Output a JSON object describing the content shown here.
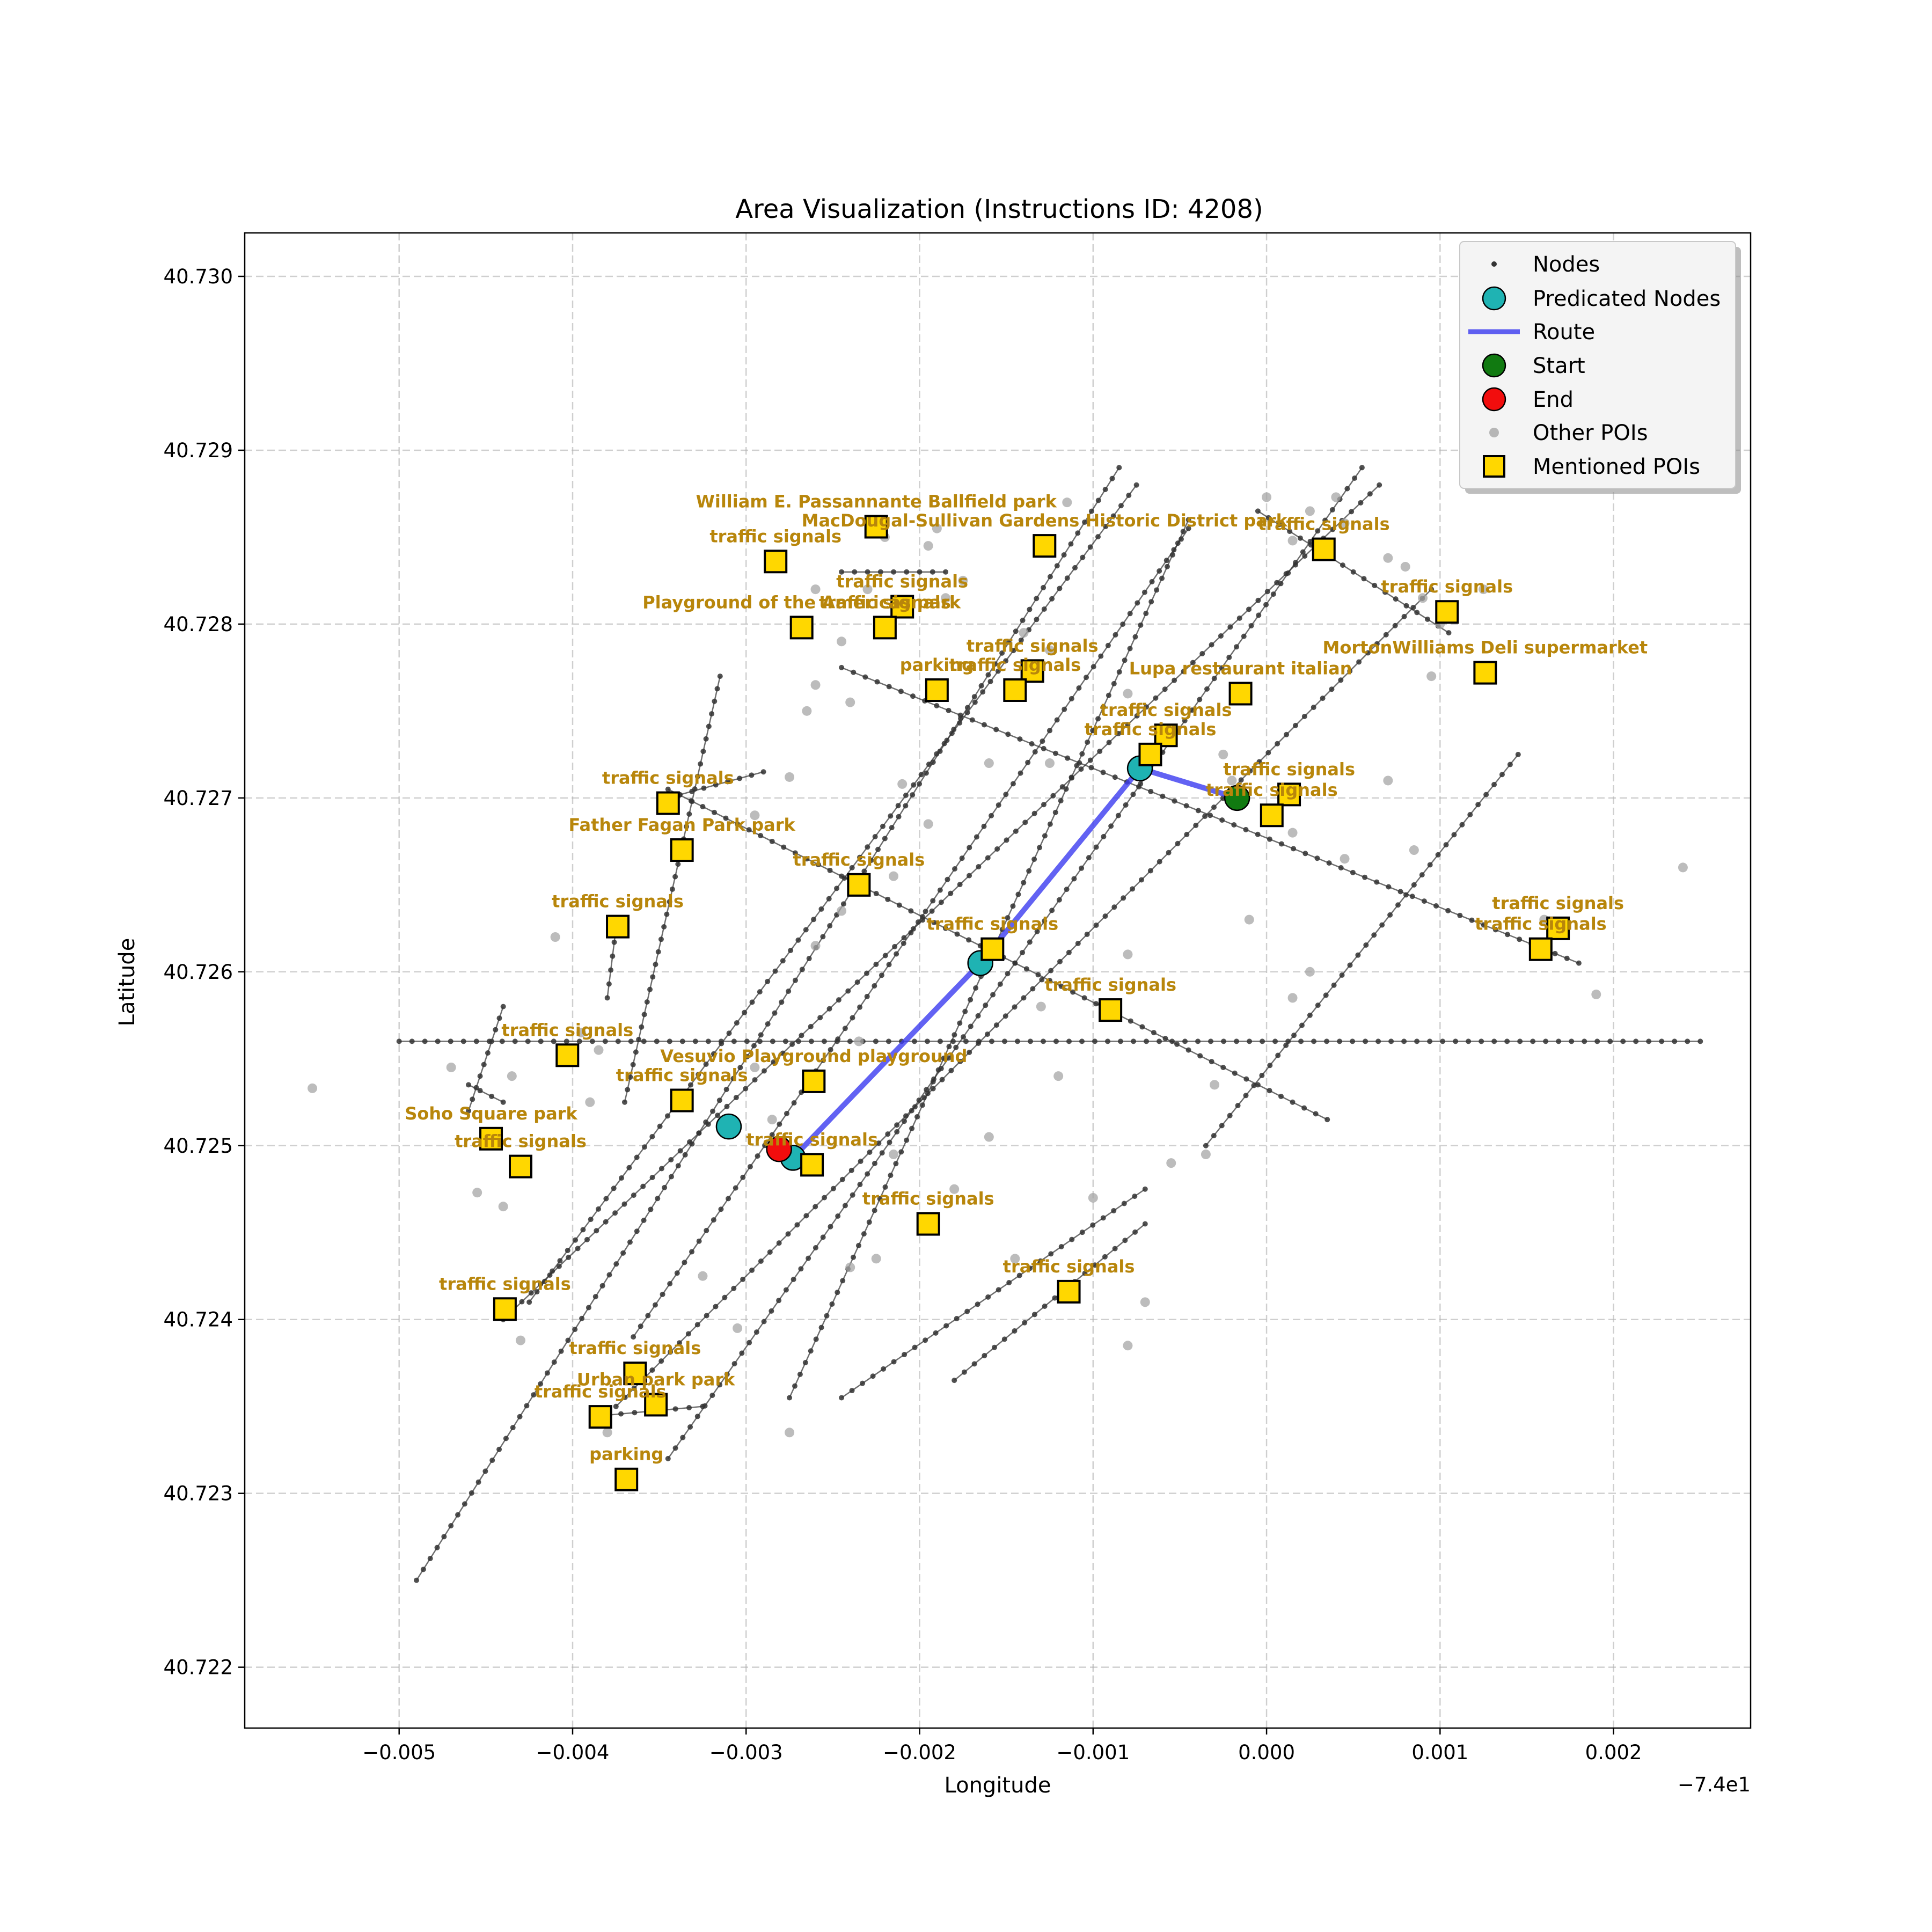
{
  "figure": {
    "title": "Area Visualization (Instructions ID: 4208)",
    "xlabel": "Longitude",
    "ylabel": "Latitude",
    "x_offset_text": "−7.4e1"
  },
  "chart_data": {
    "type": "scatter",
    "x_offset": -74,
    "xlim": [
      -0.00589,
      0.00279
    ],
    "ylim": [
      40.72165,
      40.73025
    ],
    "xticks": [
      -0.005,
      -0.004,
      -0.003,
      -0.002,
      -0.001,
      0.0,
      0.001,
      0.002
    ],
    "xtick_labels": [
      "−0.005",
      "−0.004",
      "−0.003",
      "−0.002",
      "−0.001",
      "0.000",
      "0.001",
      "0.002"
    ],
    "yticks": [
      40.722,
      40.723,
      40.724,
      40.725,
      40.726,
      40.727,
      40.728,
      40.729,
      40.73
    ],
    "ytick_labels": [
      "40.722",
      "40.723",
      "40.724",
      "40.725",
      "40.726",
      "40.727",
      "40.728",
      "40.729",
      "40.730"
    ],
    "grid": true,
    "legend": {
      "location": "top-right",
      "entries": [
        "Nodes",
        "Predicated Nodes",
        "Route",
        "Start",
        "End",
        "Other POIs",
        "Mentioned POIs"
      ]
    },
    "colors": {
      "nodes": "#333333",
      "predicted": "#1fb3b3",
      "route": "#3b3bf0",
      "start": "#117a11",
      "end": "#f20d0d",
      "other_poi": "#a6a6a6",
      "mentioned_poi": "#ffd700",
      "poi_label": "#b8860b"
    },
    "roads": [
      [
        [
          -0.00245,
          40.72355
        ],
        [
          -0.0007,
          40.72475
        ]
      ],
      [
        [
          -0.00275,
          40.72355
        ],
        [
          -0.00045,
          40.7286
        ]
      ],
      [
        [
          -0.00365,
          40.7239
        ],
        [
          -0.00045,
          40.72855
        ]
      ],
      [
        [
          -0.00425,
          40.7241
        ],
        [
          -0.00075,
          40.7288
        ]
      ],
      [
        [
          -0.0049,
          40.7225
        ],
        [
          -0.00085,
          40.7289
        ]
      ],
      [
        [
          -0.00345,
          40.7232
        ],
        [
          0.00055,
          40.7289
        ]
      ],
      [
        [
          -0.0044,
          40.724
        ],
        [
          0.00065,
          40.7288
        ]
      ],
      [
        [
          -0.00375,
          40.7235
        ],
        [
          0.00095,
          40.7282
        ]
      ],
      [
        [
          -0.00035,
          40.725
        ],
        [
          0.00145,
          40.72725
        ]
      ],
      [
        [
          -0.005,
          40.7256
        ],
        [
          0.0025,
          40.7256
        ]
      ],
      [
        [
          -0.00345,
          40.72705
        ],
        [
          0.00035,
          40.72515
        ]
      ],
      [
        [
          -0.00245,
          40.72775
        ],
        [
          0.0018,
          40.72605
        ]
      ],
      [
        [
          -5e-05,
          40.72865
        ],
        [
          0.00105,
          40.72795
        ]
      ],
      [
        [
          -0.0038,
          40.72345
        ],
        [
          -0.00325,
          40.7235
        ]
      ],
      [
        [
          -0.0037,
          40.72525
        ],
        [
          -0.00315,
          40.7277
        ]
      ],
      [
        [
          -0.00345,
          40.727
        ],
        [
          -0.0029,
          40.72715
        ]
      ],
      [
        [
          -0.0046,
          40.72535
        ],
        [
          -0.0044,
          40.72525
        ]
      ],
      [
        [
          -0.00375,
          40.72625
        ],
        [
          -0.0038,
          40.72585
        ]
      ],
      [
        [
          -0.0046,
          40.7252
        ],
        [
          -0.0044,
          40.7258
        ]
      ],
      [
        [
          -0.00245,
          40.7283
        ],
        [
          -0.00185,
          40.7283
        ]
      ],
      [
        [
          -0.0018,
          40.72365
        ],
        [
          -0.0007,
          40.72455
        ]
      ]
    ],
    "predicted_nodes": [
      {
        "lon": -0.0031,
        "lat": 40.72511
      },
      {
        "lon": -0.00273,
        "lat": 40.72493
      },
      {
        "lon": -0.00165,
        "lat": 40.72605
      },
      {
        "lon": -0.00073,
        "lat": 40.72717
      }
    ],
    "route": [
      {
        "lon": -0.00017,
        "lat": 40.727
      },
      {
        "lon": -0.00073,
        "lat": 40.72717
      },
      {
        "lon": -0.00165,
        "lat": 40.72605
      },
      {
        "lon": -0.00273,
        "lat": 40.72493
      }
    ],
    "start": {
      "lon": -0.00017,
      "lat": 40.727
    },
    "end": {
      "lon": -0.00281,
      "lat": 40.72498
    },
    "other_pois": [
      [
        -0.0055,
        40.72533
      ],
      [
        -0.0047,
        40.72545
      ],
      [
        -0.00435,
        40.7254
      ],
      [
        -0.0044,
        40.72465
      ],
      [
        -0.00455,
        40.72473
      ],
      [
        -0.0043,
        40.72388
      ],
      [
        -0.0038,
        40.72335
      ],
      [
        -0.00395,
        40.72565
      ],
      [
        -0.00385,
        40.72555
      ],
      [
        -0.0039,
        40.72525
      ],
      [
        -0.0041,
        40.7262
      ],
      [
        -0.00325,
        40.72425
      ],
      [
        -0.00305,
        40.72395
      ],
      [
        -0.00295,
        40.72545
      ],
      [
        -0.00285,
        40.72515
      ],
      [
        -0.00275,
        40.72335
      ],
      [
        -0.0026,
        40.72615
      ],
      [
        -0.00245,
        40.72635
      ],
      [
        -0.00235,
        40.7256
      ],
      [
        -0.00225,
        40.72435
      ],
      [
        -0.0024,
        40.7243
      ],
      [
        -0.00215,
        40.72495
      ],
      [
        -0.0018,
        40.72475
      ],
      [
        -0.0016,
        40.72505
      ],
      [
        -0.00145,
        40.72435
      ],
      [
        -0.0013,
        40.7258
      ],
      [
        -0.0012,
        40.7254
      ],
      [
        -0.001,
        40.7247
      ],
      [
        -0.0008,
        40.7261
      ],
      [
        -0.0008,
        40.72385
      ],
      [
        -0.0007,
        40.7241
      ],
      [
        -0.00055,
        40.7249
      ],
      [
        -0.0003,
        40.72535
      ],
      [
        -0.00035,
        40.72495
      ],
      [
        -0.0001,
        40.7263
      ],
      [
        0.00015,
        40.72585
      ],
      [
        0.00025,
        40.726
      ],
      [
        0.00085,
        40.7267
      ],
      [
        0.00095,
        40.7277
      ],
      [
        0.0016,
        40.7263
      ],
      [
        0.0019,
        40.72587
      ],
      [
        0.0024,
        40.7266
      ],
      [
        0.00015,
        40.7268
      ],
      [
        0.00045,
        40.72665
      ],
      [
        0.0007,
        40.7271
      ],
      [
        -0.0002,
        40.7271
      ],
      [
        -0.00025,
        40.72725
      ],
      [
        -0.0008,
        40.7276
      ],
      [
        -0.00125,
        40.7272
      ],
      [
        -0.0016,
        40.7272
      ],
      [
        -0.00195,
        40.72685
      ],
      [
        -0.00215,
        40.72655
      ],
      [
        -0.0021,
        40.72708
      ],
      [
        -0.00265,
        40.7275
      ],
      [
        -0.0026,
        40.72765
      ],
      [
        -0.0026,
        40.7282
      ],
      [
        -0.0023,
        40.7282
      ],
      [
        -0.00245,
        40.7279
      ],
      [
        -0.0024,
        40.72755
      ],
      [
        -0.0022,
        40.7285
      ],
      [
        -0.00195,
        40.72845
      ],
      [
        -0.00175,
        40.72825
      ],
      [
        -0.00185,
        40.72815
      ],
      [
        -0.0014,
        40.72795
      ],
      [
        -0.00125,
        40.72785
      ],
      [
        -0.00115,
        40.7287
      ],
      [
        -0.0019,
        40.72855
      ],
      [
        0.0,
        40.72873
      ],
      [
        0.00025,
        40.72865
      ],
      [
        0.0004,
        40.72873
      ],
      [
        0.00015,
        40.72848
      ],
      [
        0.00045,
        40.72858
      ],
      [
        0.0007,
        40.72838
      ],
      [
        0.0008,
        40.72833
      ],
      [
        0.0009,
        40.72815
      ],
      [
        0.001,
        40.728
      ],
      [
        0.00125,
        40.7282
      ],
      [
        -0.00295,
        40.7269
      ],
      [
        -0.00275,
        40.72712
      ]
    ],
    "mentioned_pois": [
      {
        "lon": -0.00283,
        "lat": 40.72836,
        "label": "traffic signals"
      },
      {
        "lon": -0.00225,
        "lat": 40.72856,
        "label": "William E. Passannante Ballfield   park"
      },
      {
        "lon": -0.00128,
        "lat": 40.72845,
        "label": "MacDougal-Sullivan Gardens Historic District   park"
      },
      {
        "lon": -0.0021,
        "lat": 40.7281,
        "label": "traffic signals"
      },
      {
        "lon": -0.00268,
        "lat": 40.72798,
        "label": "Playground of the Americas   park"
      },
      {
        "lon": -0.0022,
        "lat": 40.72798,
        "label": "traffic signals"
      },
      {
        "lon": -0.00135,
        "lat": 40.72773,
        "label": "traffic signals"
      },
      {
        "lon": -0.0019,
        "lat": 40.72762,
        "label": "parking"
      },
      {
        "lon": -0.00145,
        "lat": 40.72762,
        "label": "traffic signals"
      },
      {
        "lon": -0.00015,
        "lat": 40.7276,
        "label": "Lupa restaurant italian"
      },
      {
        "lon": 0.00033,
        "lat": 40.72843,
        "label": "traffic signals"
      },
      {
        "lon": 0.00104,
        "lat": 40.72807,
        "label": "traffic signals"
      },
      {
        "lon": 0.00126,
        "lat": 40.72772,
        "label": "MortonWilliams Deli     supermarket"
      },
      {
        "lon": -0.00058,
        "lat": 40.72736,
        "label": "traffic signals"
      },
      {
        "lon": -0.00067,
        "lat": 40.72725,
        "label": "traffic signals"
      },
      {
        "lon": 0.00013,
        "lat": 40.72702,
        "label": "traffic signals"
      },
      {
        "lon": 3e-05,
        "lat": 40.7269,
        "label": "traffic signals"
      },
      {
        "lon": -0.00345,
        "lat": 40.72697,
        "label": "traffic signals"
      },
      {
        "lon": -0.00337,
        "lat": 40.7267,
        "label": "Father Fagan Park   park"
      },
      {
        "lon": -0.00235,
        "lat": 40.7265,
        "label": "traffic signals"
      },
      {
        "lon": -0.00374,
        "lat": 40.72626,
        "label": "traffic signals"
      },
      {
        "lon": -0.00158,
        "lat": 40.72613,
        "label": "traffic signals"
      },
      {
        "lon": 0.00168,
        "lat": 40.72625,
        "label": "traffic signals"
      },
      {
        "lon": 0.00158,
        "lat": 40.72613,
        "label": "traffic signals"
      },
      {
        "lon": -0.0009,
        "lat": 40.72578,
        "label": "traffic signals"
      },
      {
        "lon": -0.00403,
        "lat": 40.72552,
        "label": "traffic signals"
      },
      {
        "lon": -0.00337,
        "lat": 40.72526,
        "label": "traffic signals"
      },
      {
        "lon": -0.00261,
        "lat": 40.72537,
        "label": "Vesuvio Playground    playground"
      },
      {
        "lon": -0.00447,
        "lat": 40.72504,
        "label": "Soho Square   park"
      },
      {
        "lon": -0.0043,
        "lat": 40.72488,
        "label": "traffic signals"
      },
      {
        "lon": -0.00262,
        "lat": 40.72489,
        "label": "traffic signals"
      },
      {
        "lon": -0.00195,
        "lat": 40.72455,
        "label": "traffic signals"
      },
      {
        "lon": -0.00114,
        "lat": 40.72416,
        "label": "traffic signals"
      },
      {
        "lon": -0.00439,
        "lat": 40.72406,
        "label": "traffic signals"
      },
      {
        "lon": -0.00364,
        "lat": 40.72369,
        "label": "traffic signals"
      },
      {
        "lon": -0.00352,
        "lat": 40.72351,
        "label": "Urban park   park"
      },
      {
        "lon": -0.00384,
        "lat": 40.72344,
        "label": "traffic signals"
      },
      {
        "lon": -0.00369,
        "lat": 40.72308,
        "label": "parking"
      }
    ]
  }
}
